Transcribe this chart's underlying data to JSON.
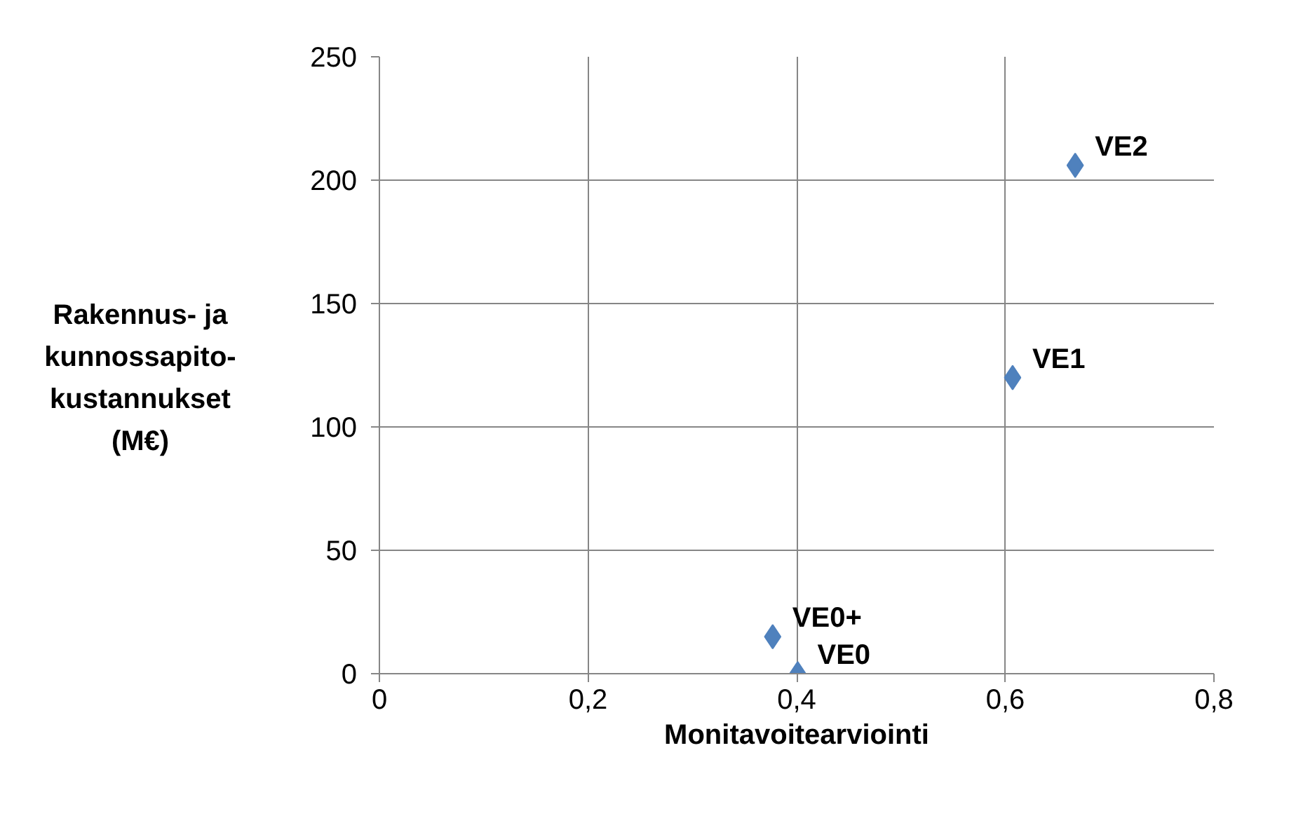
{
  "chart_data": {
    "type": "scatter",
    "xlabel": "Monitavoitearviointi",
    "ylabel": "Rakennus- ja kunnossapito-kustannukset (M€)",
    "x": [
      0.401,
      0.377,
      0.607,
      0.667
    ],
    "values": [
      0,
      15,
      120,
      206
    ],
    "color": "#4f81bd",
    "marker": "diamond",
    "grid": true,
    "xlim": [
      0,
      0.8
    ],
    "xticks": [
      {
        "value": 0,
        "label": "0"
      },
      {
        "value": 0.2,
        "label": "0,2"
      },
      {
        "value": 0.4,
        "label": "0,4"
      },
      {
        "value": 0.6,
        "label": "0,6"
      },
      {
        "value": 0.8,
        "label": "0,8"
      }
    ],
    "ylim": [
      0,
      250
    ],
    "yticks": [
      0,
      50,
      100,
      150,
      200,
      250
    ],
    "annotations": [
      {
        "text": "VE0",
        "x": 0.401,
        "y": 0
      },
      {
        "text": "VE0+",
        "x": 0.377,
        "y": 15
      },
      {
        "text": "VE1",
        "x": 0.607,
        "y": 120
      },
      {
        "text": "VE2",
        "x": 0.667,
        "y": 206
      }
    ]
  }
}
